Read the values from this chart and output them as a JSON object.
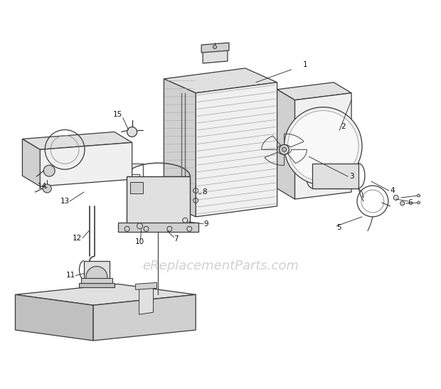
{
  "bg_color": "#ffffff",
  "watermark": "eReplacementParts.com",
  "wm_color": "#cccccc",
  "wm_size": 13,
  "ec": "#3a3a3a",
  "lc": "#3a3a3a",
  "gray1": "#f0f0f0",
  "gray2": "#e0e0e0",
  "gray3": "#d0d0d0",
  "gray4": "#c0c0c0",
  "gray5": "#b0b0b0"
}
